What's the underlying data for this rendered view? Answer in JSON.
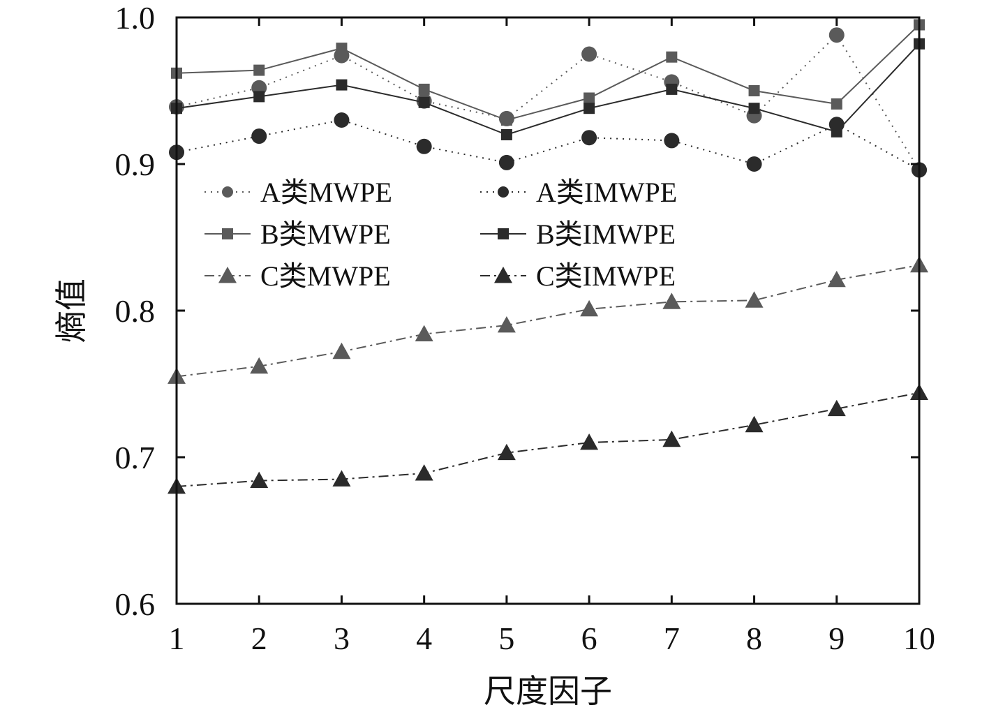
{
  "chart_data": {
    "type": "line",
    "title": "",
    "xlabel": "尺度因子",
    "ylabel": "熵值",
    "x": [
      1,
      2,
      3,
      4,
      5,
      6,
      7,
      8,
      9,
      10
    ],
    "xlim": [
      1,
      10
    ],
    "ylim": [
      0.6,
      1.0
    ],
    "xticks": [
      "1",
      "2",
      "3",
      "4",
      "5",
      "6",
      "7",
      "8",
      "9",
      "10"
    ],
    "yticks": [
      "0.6",
      "0.7",
      "0.8",
      "0.9",
      "1.0"
    ],
    "grid": false,
    "legend_position": "upper-left",
    "series": [
      {
        "name": "A类MWPE",
        "values": [
          0.939,
          0.952,
          0.974,
          0.943,
          0.931,
          0.975,
          0.956,
          0.933,
          0.988,
          0.896
        ],
        "marker": "circle",
        "line_style": "dotted",
        "color": "#5a5a5a"
      },
      {
        "name": "A类IMWPE",
        "values": [
          0.908,
          0.919,
          0.93,
          0.912,
          0.901,
          0.918,
          0.916,
          0.9,
          0.927,
          0.896
        ],
        "marker": "circle",
        "line_style": "dotted",
        "color": "#2b2b2b"
      },
      {
        "name": "B类MWPE",
        "values": [
          0.962,
          0.964,
          0.979,
          0.951,
          0.93,
          0.945,
          0.973,
          0.95,
          0.941,
          0.995
        ],
        "marker": "square",
        "line_style": "solid",
        "color": "#5a5a5a"
      },
      {
        "name": "B类IMWPE",
        "values": [
          0.938,
          0.946,
          0.954,
          0.942,
          0.92,
          0.938,
          0.951,
          0.938,
          0.922,
          0.982
        ],
        "marker": "square",
        "line_style": "solid",
        "color": "#2b2b2b"
      },
      {
        "name": "C类MWPE",
        "values": [
          0.755,
          0.762,
          0.772,
          0.784,
          0.79,
          0.801,
          0.806,
          0.807,
          0.821,
          0.831
        ],
        "marker": "triangle",
        "line_style": "dashdot",
        "color": "#5a5a5a"
      },
      {
        "name": "C类IMWPE",
        "values": [
          0.68,
          0.684,
          0.685,
          0.689,
          0.703,
          0.71,
          0.712,
          0.722,
          0.733,
          0.744
        ],
        "marker": "triangle",
        "line_style": "dashdot",
        "color": "#2b2b2b"
      }
    ]
  }
}
